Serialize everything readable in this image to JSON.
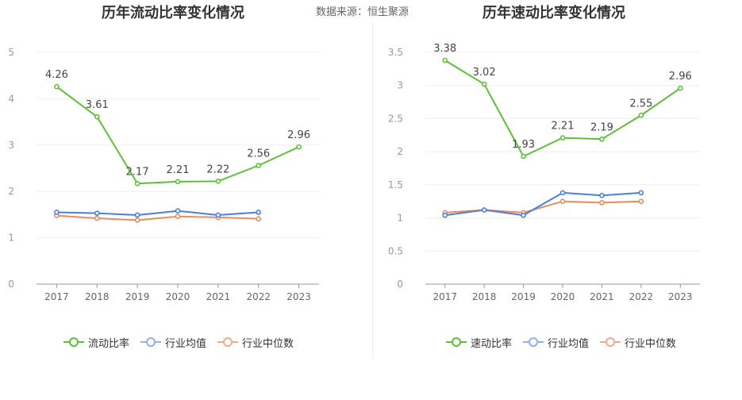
{
  "header": {
    "left_title": "历年流动比率变化情况",
    "right_title": "历年速动比率变化情况",
    "source": "数据来源：恒生聚源"
  },
  "legend_left": [
    {
      "label": "流动比率",
      "color": "#5dc136"
    },
    {
      "label": "行业均值",
      "color": "#8fb0ec"
    },
    {
      "label": "行业中位数",
      "color": "#f4a98c"
    }
  ],
  "legend_right": [
    {
      "label": "速动比率",
      "color": "#5dc136"
    },
    {
      "label": "行业均值",
      "color": "#8fb0ec"
    },
    {
      "label": "行业中位数",
      "color": "#f4a98c"
    }
  ],
  "chart_data": [
    {
      "type": "line",
      "title": "历年流动比率变化情况",
      "categories": [
        "2017",
        "2018",
        "2019",
        "2020",
        "2021",
        "2022",
        "2023"
      ],
      "ylim": [
        0,
        5
      ],
      "yticks": [
        0,
        1,
        2,
        3,
        4,
        5
      ],
      "grid": true,
      "legend_position": "bottom",
      "series": [
        {
          "name": "流动比率",
          "color": "#5dc136",
          "labels": true,
          "values": [
            4.26,
            3.61,
            2.17,
            2.21,
            2.22,
            2.56,
            2.96
          ]
        },
        {
          "name": "行业均值",
          "color": "#4a7fde",
          "labels": false,
          "values": [
            1.55,
            1.53,
            1.49,
            1.58,
            1.49,
            1.55,
            null
          ]
        },
        {
          "name": "行业中位数",
          "color": "#ec8a62",
          "labels": false,
          "values": [
            1.48,
            1.42,
            1.38,
            1.46,
            1.44,
            1.41,
            null
          ]
        }
      ]
    },
    {
      "type": "line",
      "title": "历年速动比率变化情况",
      "categories": [
        "2017",
        "2018",
        "2019",
        "2020",
        "2021",
        "2022",
        "2023"
      ],
      "ylim": [
        0,
        3.5
      ],
      "yticks": [
        0,
        0.5,
        1,
        1.5,
        2,
        2.5,
        3,
        3.5
      ],
      "grid": true,
      "legend_position": "bottom",
      "series": [
        {
          "name": "速动比率",
          "color": "#5dc136",
          "labels": true,
          "values": [
            3.38,
            3.02,
            1.93,
            2.21,
            2.19,
            2.55,
            2.96
          ]
        },
        {
          "name": "行业均值",
          "color": "#4a7fde",
          "labels": false,
          "values": [
            1.04,
            1.12,
            1.04,
            1.38,
            1.34,
            1.38,
            null
          ]
        },
        {
          "name": "行业中位数",
          "color": "#ec8a62",
          "labels": false,
          "values": [
            1.08,
            1.12,
            1.08,
            1.25,
            1.23,
            1.25,
            null
          ]
        }
      ]
    }
  ]
}
